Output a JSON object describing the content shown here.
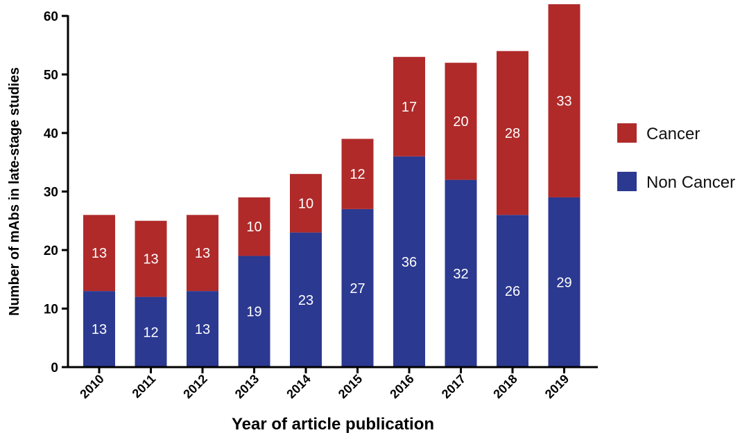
{
  "chart_data": {
    "type": "bar",
    "stacked": true,
    "categories": [
      "2010",
      "2011",
      "2012",
      "2013",
      "2014",
      "2015",
      "2016",
      "2017",
      "2018",
      "2019"
    ],
    "series": [
      {
        "name": "Non Cancer",
        "color": "#2b3990",
        "values": [
          13,
          12,
          13,
          19,
          23,
          27,
          36,
          32,
          26,
          29
        ]
      },
      {
        "name": "Cancer",
        "color": "#b02a2a",
        "values": [
          13,
          13,
          13,
          10,
          10,
          12,
          17,
          20,
          28,
          33
        ]
      }
    ],
    "xlabel": "Year of article publication",
    "ylabel": "Number of mAbs in late-stage studies",
    "ylim": [
      0,
      60
    ],
    "yticks": [
      0,
      10,
      20,
      30,
      40,
      50,
      60
    ],
    "legend": {
      "position": "right",
      "entries": [
        "Cancer",
        "Non Cancer"
      ]
    },
    "grid": false
  }
}
